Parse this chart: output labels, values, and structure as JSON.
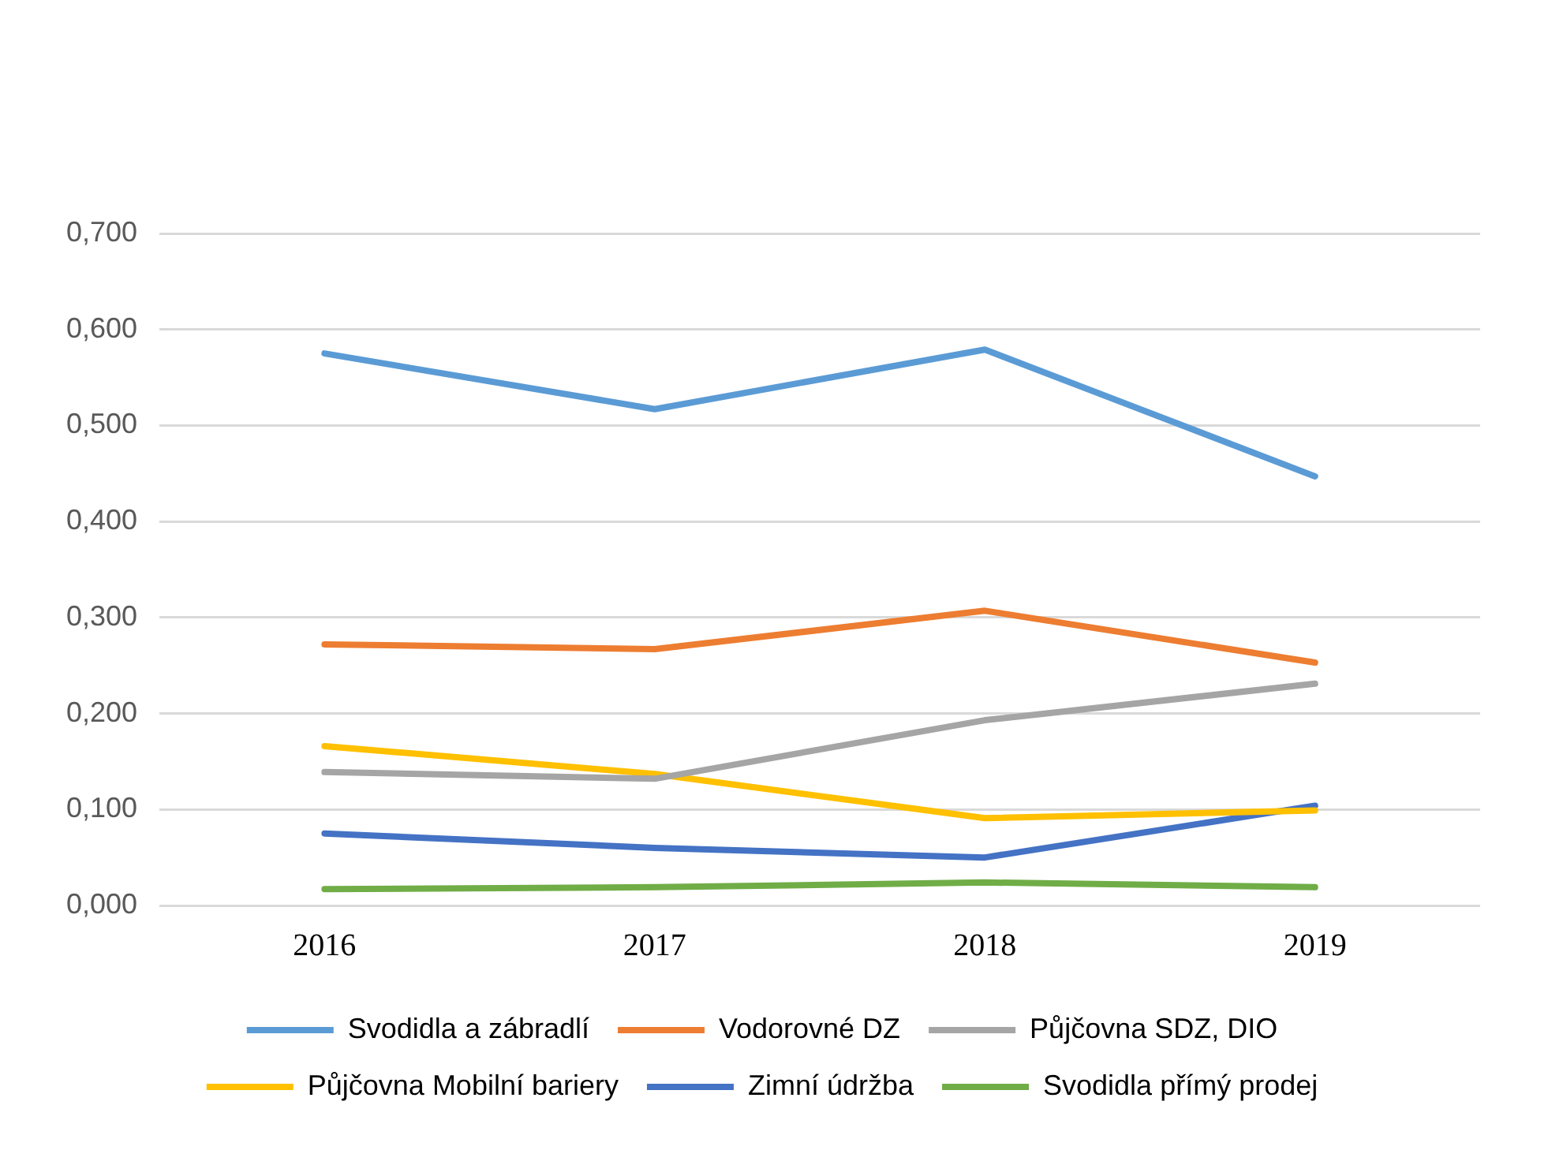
{
  "chart_data": {
    "type": "line",
    "categories": [
      "2016",
      "2017",
      "2018",
      "2019"
    ],
    "series": [
      {
        "name": "Svodidla a zábradlí",
        "color": "#5b9bd5",
        "values": [
          0.575,
          0.517,
          0.579,
          0.447
        ]
      },
      {
        "name": "Vodorovné DZ",
        "color": "#ed7d31",
        "values": [
          0.272,
          0.267,
          0.307,
          0.253
        ]
      },
      {
        "name": "Půjčovna SDZ, DIO",
        "color": "#a5a5a5",
        "values": [
          0.139,
          0.132,
          0.193,
          0.231
        ]
      },
      {
        "name": "Půjčovna Mobilní bariery",
        "color": "#ffc000",
        "values": [
          0.166,
          0.137,
          0.091,
          0.099
        ]
      },
      {
        "name": "Zimní údržba",
        "color": "#4472c4",
        "values": [
          0.075,
          0.06,
          0.05,
          0.104
        ]
      },
      {
        "name": "Svodidla přímý prodej",
        "color": "#70ad47",
        "values": [
          0.017,
          0.019,
          0.024,
          0.019
        ]
      }
    ],
    "ylim": [
      0,
      0.7
    ],
    "yticks": [
      {
        "value": 0,
        "label": "0,000"
      },
      {
        "value": 0.1,
        "label": "0,100"
      },
      {
        "value": 0.2,
        "label": "0,200"
      },
      {
        "value": 0.3,
        "label": "0,300"
      },
      {
        "value": 0.4,
        "label": "0,400"
      },
      {
        "value": 0.5,
        "label": "0,500"
      },
      {
        "value": 0.6,
        "label": "0,600"
      },
      {
        "value": 0.7,
        "label": "0,700"
      }
    ],
    "grid": "y",
    "legend": "bottom",
    "marker": "none",
    "line_style": "solid"
  }
}
